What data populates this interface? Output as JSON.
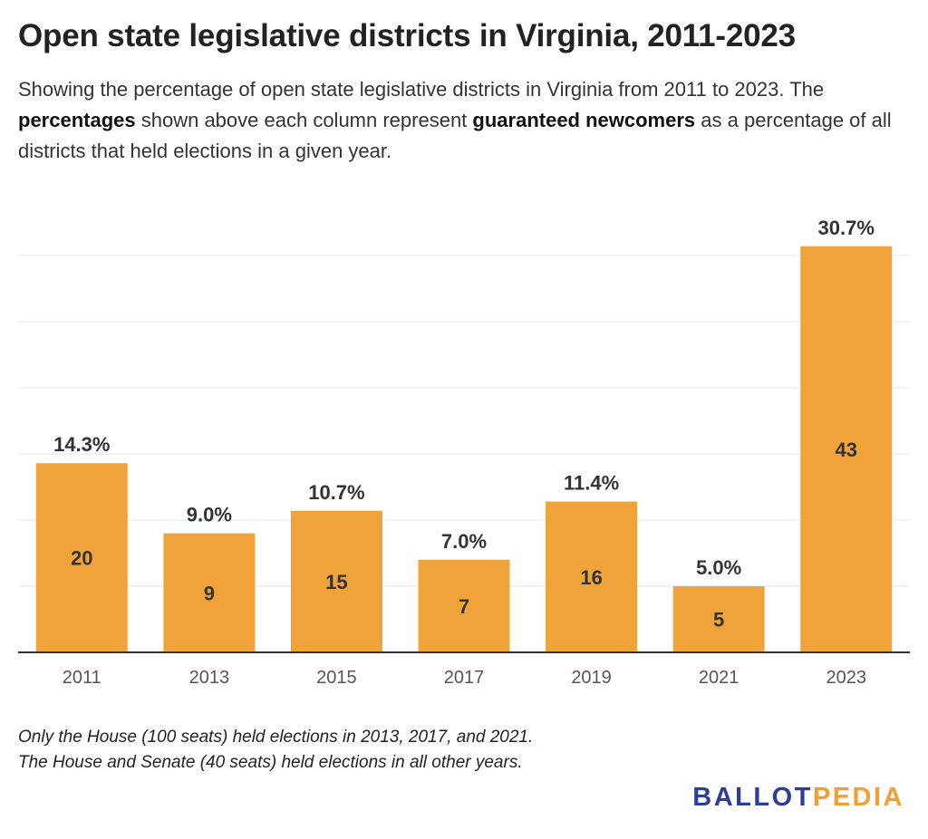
{
  "header": {
    "title": "Open state legislative districts in Virginia, 2011-2023",
    "subtitle_part1": "Showing the percentage of open state legislative districts in Virginia from 2011 to 2023. The ",
    "subtitle_bold1": "percentages",
    "subtitle_part2": " shown above each column represent ",
    "subtitle_bold2": "guaranteed newcomers",
    "subtitle_part3": " as a percentage of all districts that held elections in a given year."
  },
  "footer": {
    "note_line1": "Only the House (100 seats) held elections in 2013, 2017, and 2021.",
    "note_line2": "The House and Senate (40 seats) held elections in all other years.",
    "logo_ballot": "BALLOT",
    "logo_pedia": "PEDIA"
  },
  "colors": {
    "bar": "#f0a33a",
    "grid": "#e4e4e4",
    "axis": "#333333",
    "bar_label": "#333333",
    "tick_label": "#555555",
    "logo_ballot": "#2c3e9a",
    "logo_pedia": "#f0a030"
  },
  "chart_data": {
    "type": "bar",
    "categories": [
      "2011",
      "2013",
      "2015",
      "2017",
      "2019",
      "2021",
      "2023"
    ],
    "values": [
      14.3,
      9.0,
      10.7,
      7.0,
      11.4,
      5.0,
      30.7
    ],
    "value_labels": [
      "14.3%",
      "9.0%",
      "10.7%",
      "7.0%",
      "11.4%",
      "5.0%",
      "30.7%"
    ],
    "inner_labels": [
      "20",
      "9",
      "15",
      "7",
      "16",
      "5",
      "43"
    ],
    "ylim": [
      0,
      35
    ],
    "grid": true,
    "title": "",
    "xlabel": "",
    "ylabel": ""
  }
}
